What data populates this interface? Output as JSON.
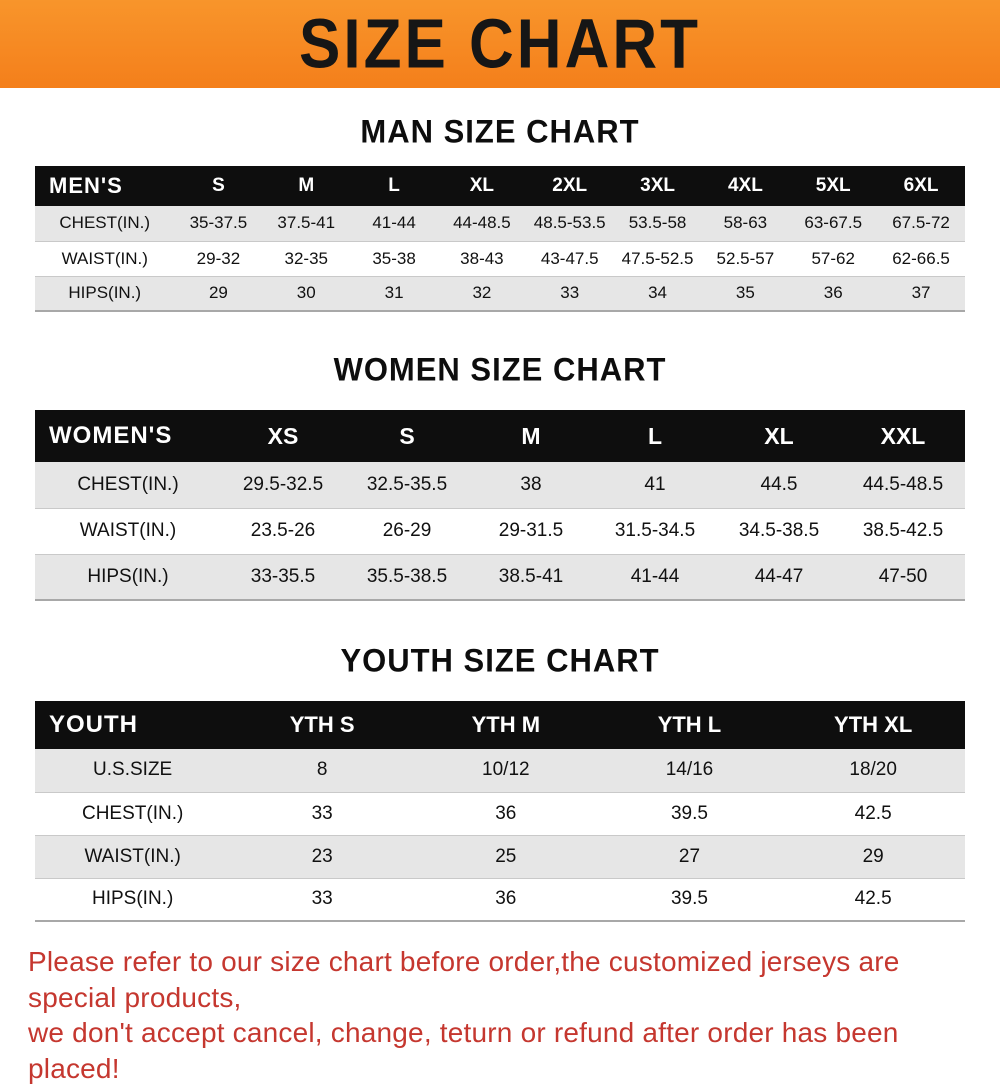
{
  "banner": {
    "title": "SIZE CHART"
  },
  "sections": [
    {
      "heading": "MAN SIZE CHART",
      "table": {
        "header": [
          "MEN'S",
          "S",
          "M",
          "L",
          "XL",
          "2XL",
          "3XL",
          "4XL",
          "5XL",
          "6XL"
        ],
        "rows": [
          [
            "CHEST(IN.)",
            "35-37.5",
            "37.5-41",
            "41-44",
            "44-48.5",
            "48.5-53.5",
            "53.5-58",
            "58-63",
            "63-67.5",
            "67.5-72"
          ],
          [
            "WAIST(IN.)",
            "29-32",
            "32-35",
            "35-38",
            "38-43",
            "43-47.5",
            "47.5-52.5",
            "52.5-57",
            "57-62",
            "62-66.5"
          ],
          [
            "HIPS(IN.)",
            "29",
            "30",
            "31",
            "32",
            "33",
            "34",
            "35",
            "36",
            "37"
          ]
        ]
      }
    },
    {
      "heading": "WOMEN SIZE CHART",
      "table": {
        "header": [
          "WOMEN'S",
          "XS",
          "S",
          "M",
          "L",
          "XL",
          "XXL"
        ],
        "rows": [
          [
            "CHEST(IN.)",
            "29.5-32.5",
            "32.5-35.5",
            "38",
            "41",
            "44.5",
            "44.5-48.5"
          ],
          [
            "WAIST(IN.)",
            "23.5-26",
            "26-29",
            "29-31.5",
            "31.5-34.5",
            "34.5-38.5",
            "38.5-42.5"
          ],
          [
            "HIPS(IN.)",
            "33-35.5",
            "35.5-38.5",
            "38.5-41",
            "41-44",
            "44-47",
            "47-50"
          ]
        ]
      }
    },
    {
      "heading": "YOUTH SIZE CHART",
      "table": {
        "header": [
          "YOUTH",
          "YTH S",
          "YTH M",
          "YTH L",
          "YTH XL"
        ],
        "rows": [
          [
            "U.S.SIZE",
            "8",
            "10/12",
            "14/16",
            "18/20"
          ],
          [
            "CHEST(IN.)",
            "33",
            "36",
            "39.5",
            "42.5"
          ],
          [
            "WAIST(IN.)",
            "23",
            "25",
            "27",
            "29"
          ],
          [
            "HIPS(IN.)",
            "33",
            "36",
            "39.5",
            "42.5"
          ]
        ]
      }
    }
  ],
  "footer": {
    "line1": "Please refer to our size chart before order,the customized jerseys are special products,",
    "line2": "we don't accept cancel, change, teturn or refund after order has been placed!"
  },
  "colors": {
    "banner": "#F47F1B",
    "table_header": "#0E0E0E",
    "row_stripe": "#E6E6E6",
    "footer_text": "#C5372F"
  }
}
